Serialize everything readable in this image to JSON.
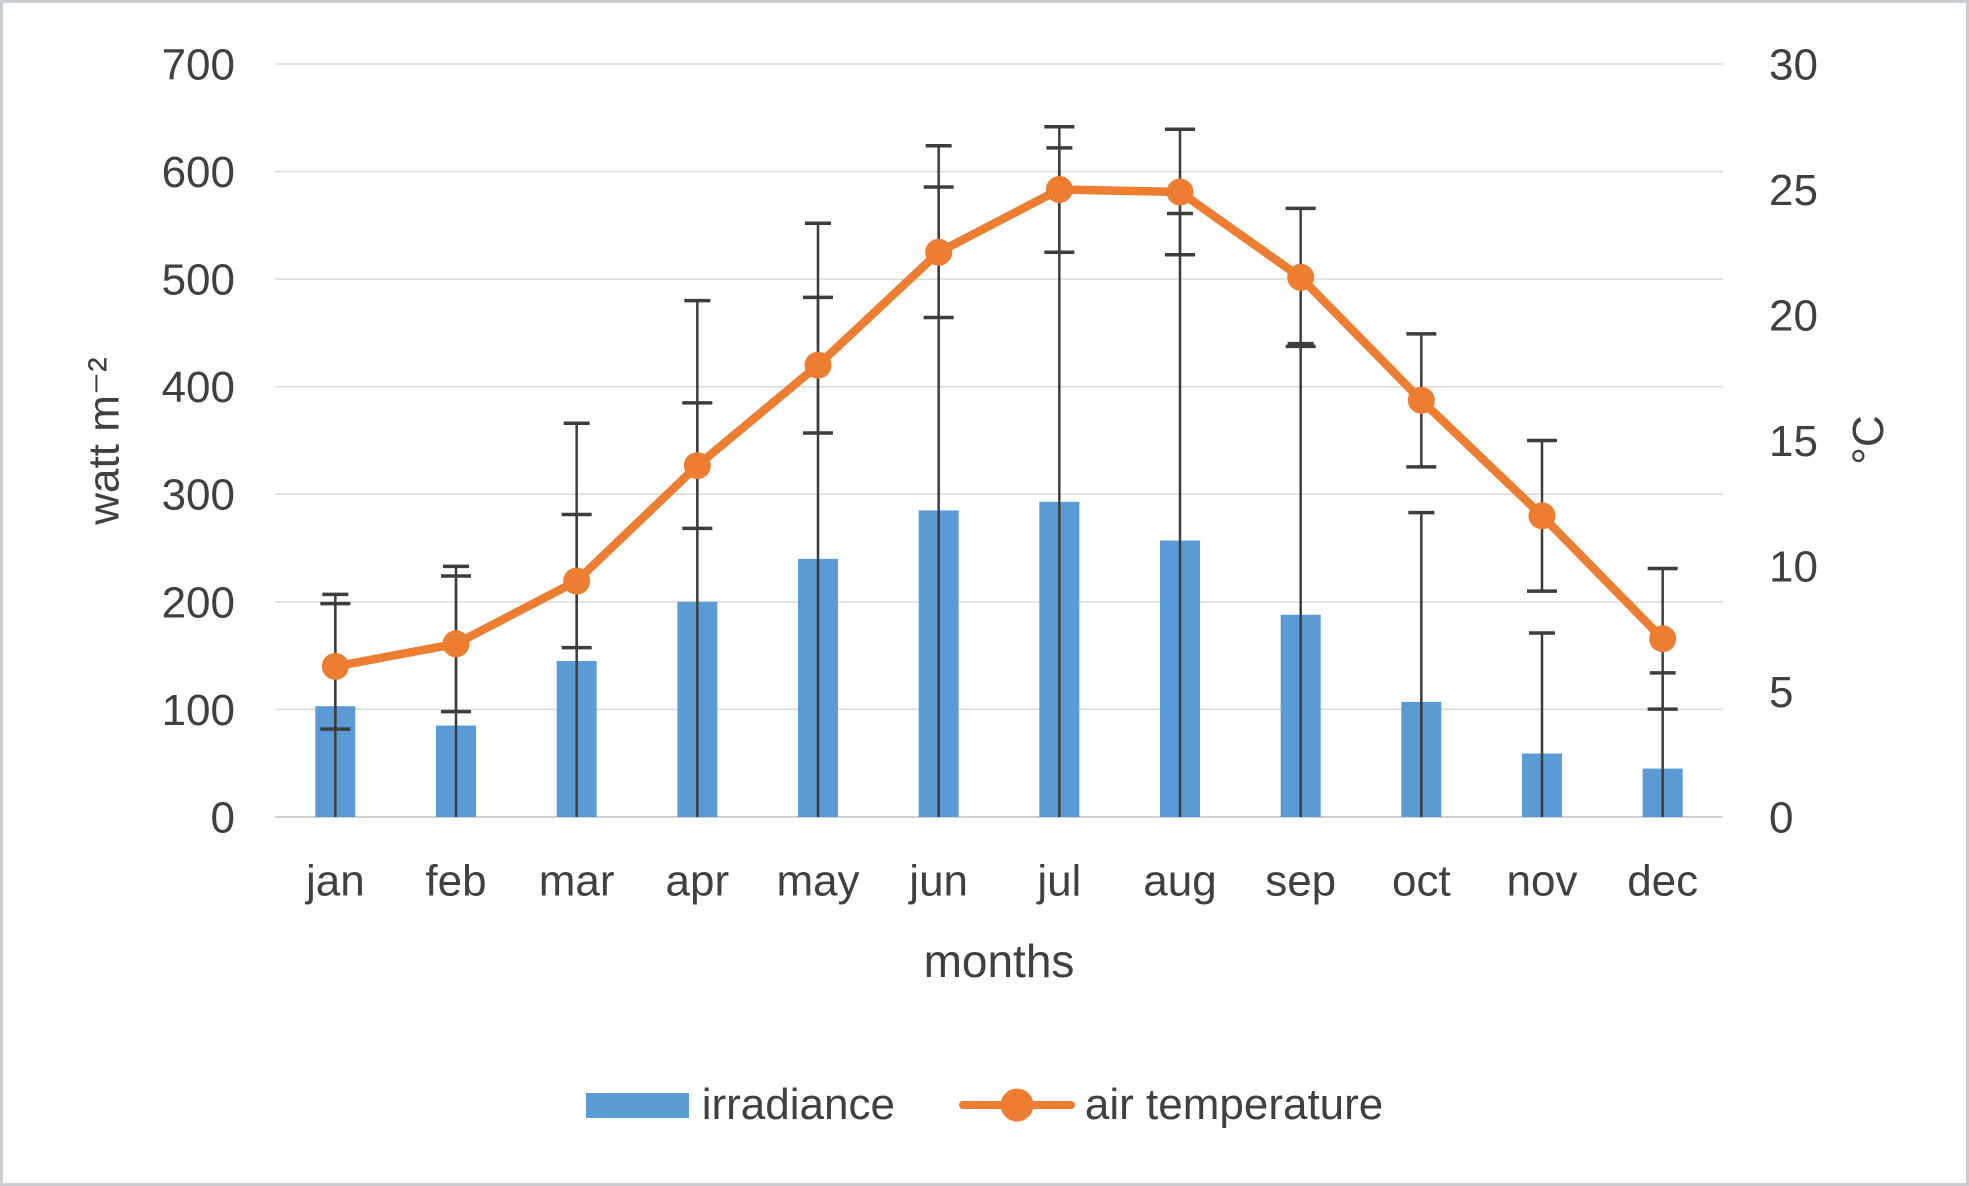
{
  "chart_data": {
    "type": "combo-bar-line",
    "title": "",
    "categories": [
      "jan",
      "feb",
      "mar",
      "apr",
      "may",
      "jun",
      "jul",
      "aug",
      "sep",
      "oct",
      "nov",
      "dec"
    ],
    "series": [
      {
        "name": "irradiance",
        "type": "bar",
        "axis": "left",
        "color": "#5b9bd5",
        "values": [
          103,
          85,
          145,
          200,
          240,
          285,
          293,
          257,
          188,
          107,
          59,
          45
        ],
        "error_plus": [
          104,
          148,
          221,
          280,
          312,
          339,
          329,
          304,
          252,
          176,
          112,
          89
        ],
        "error_minus": [
          104,
          148,
          221,
          280,
          312,
          339,
          329,
          304,
          252,
          176,
          112,
          89
        ],
        "error_clipped_at_axis_min": true
      },
      {
        "name": "air temperature",
        "type": "line",
        "axis": "right",
        "color": "#ed7d31",
        "values": [
          6.0,
          6.9,
          9.4,
          14.0,
          18.0,
          22.5,
          25.0,
          24.9,
          21.5,
          16.6,
          12.0,
          7.1
        ],
        "error_plus": [
          2.5,
          2.7,
          2.65,
          2.5,
          2.7,
          2.6,
          2.5,
          2.5,
          2.75,
          2.65,
          3.0,
          2.8
        ],
        "error_minus": [
          2.5,
          2.7,
          2.65,
          2.5,
          2.7,
          2.6,
          2.5,
          2.5,
          2.75,
          2.65,
          3.0,
          2.8
        ]
      }
    ],
    "left_axis": {
      "title": "watt m⁻²",
      "min": 0,
      "max": 700,
      "tick_step": 100,
      "ticks": [
        0,
        100,
        200,
        300,
        400,
        500,
        600,
        700
      ]
    },
    "right_axis": {
      "title": "°C",
      "min": 0,
      "max": 30,
      "tick_step": 5,
      "ticks": [
        0,
        5,
        10,
        15,
        20,
        25,
        30
      ]
    },
    "x_axis_title": "months",
    "grid": true,
    "legend_position": "bottom",
    "legend": [
      "irradiance",
      "air temperature"
    ]
  },
  "colors": {
    "bar": "#5b9bd5",
    "line": "#ed7d31",
    "gridline": "#d9d9d9",
    "axis_line": "#bfbfbf",
    "error_bar": "#3d3d3d",
    "text": "#404040",
    "frame_border": "#c9ced2",
    "background": "#ffffff"
  }
}
